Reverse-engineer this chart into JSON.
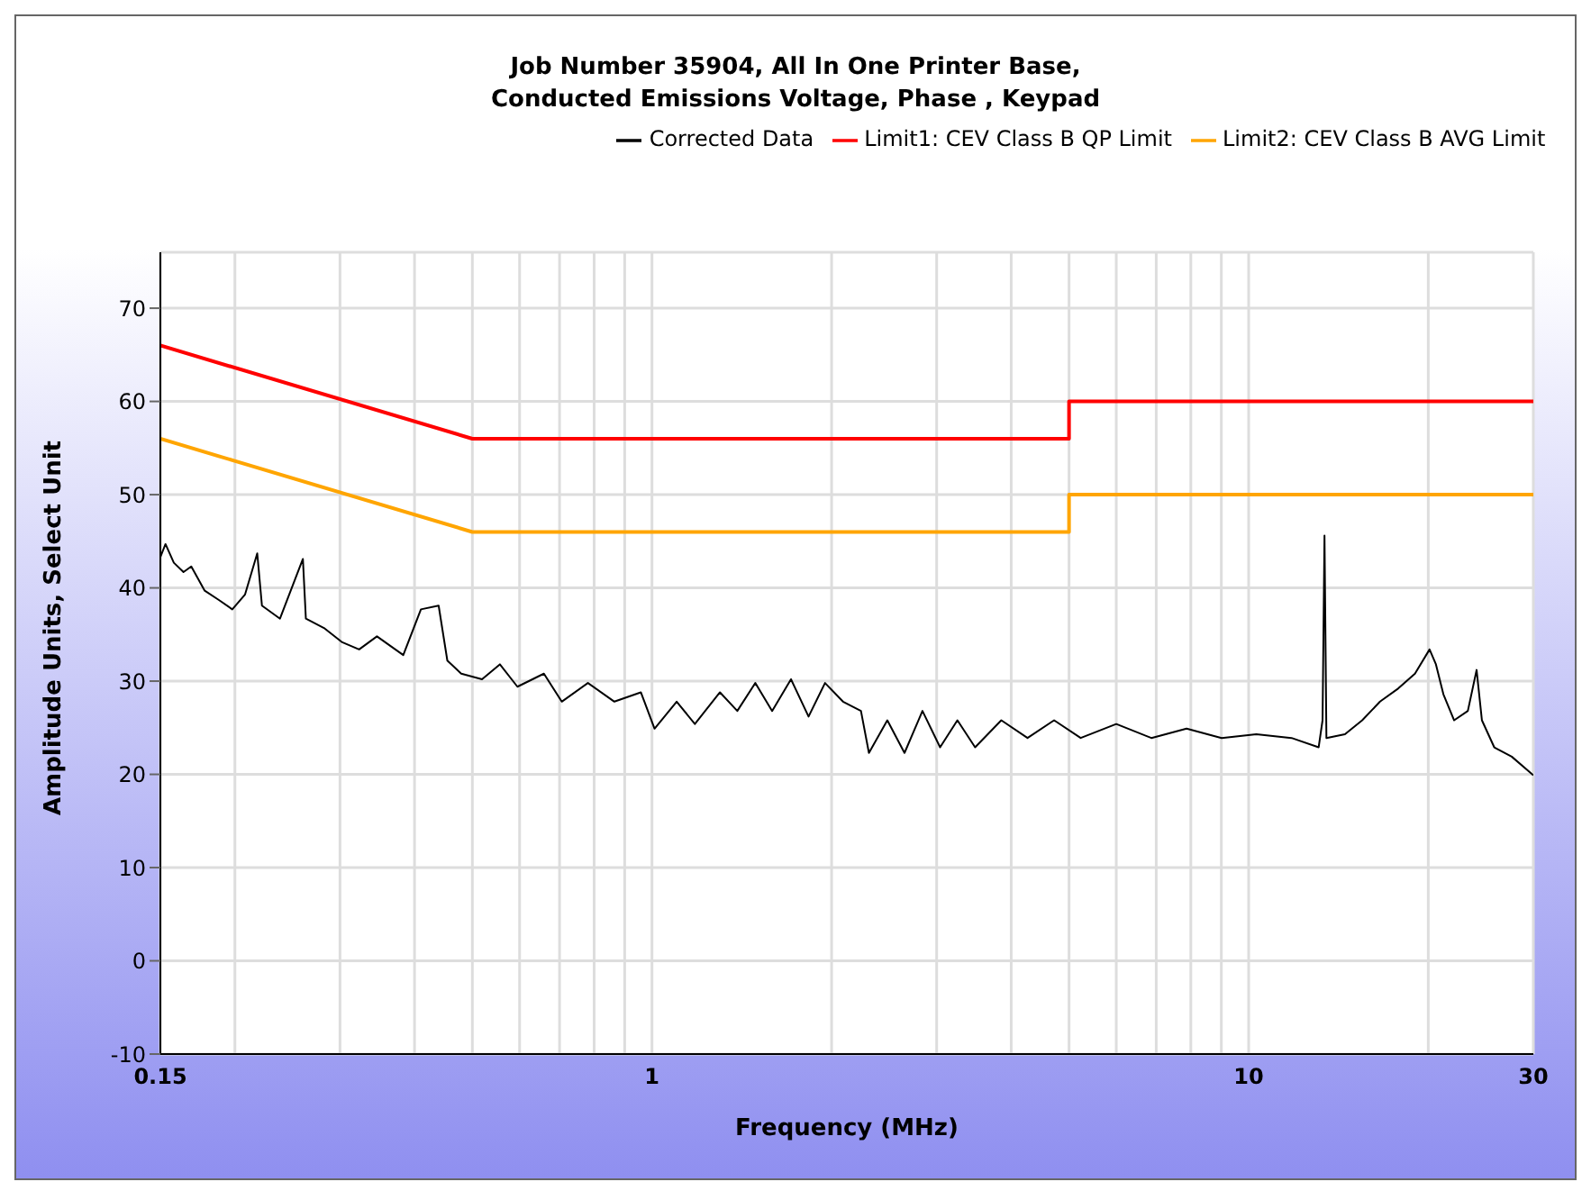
{
  "chart_data": {
    "type": "line",
    "title": "Job Number 35904, All In One Printer Base,\nConducted Emissions Voltage, Phase , Keypad",
    "xlabel": "Frequency (MHz)",
    "ylabel": "Amplitude Units, Select Unit",
    "log": "x",
    "grid": true,
    "legend": "top",
    "marker": "none",
    "line_style": "solid",
    "xlim": [
      0.15,
      30
    ],
    "xticks": [
      0.15,
      {
        "value": 0.2,
        "label": null
      },
      {
        "value": 0.3,
        "label": null
      },
      {
        "value": 0.4,
        "label": null
      },
      {
        "value": 0.5,
        "label": null
      },
      {
        "value": 0.6,
        "label": null
      },
      {
        "value": 0.7,
        "label": null
      },
      {
        "value": 0.8,
        "label": null
      },
      {
        "value": 0.9,
        "label": null
      },
      1,
      {
        "value": 2,
        "label": null
      },
      {
        "value": 3,
        "label": null
      },
      {
        "value": 4,
        "label": null
      },
      {
        "value": 5,
        "label": null
      },
      {
        "value": 6,
        "label": null
      },
      {
        "value": 7,
        "label": null
      },
      {
        "value": 8,
        "label": null
      },
      {
        "value": 9,
        "label": null
      },
      10,
      {
        "value": 20,
        "label": null
      },
      30
    ],
    "ylim": [
      -10,
      76
    ],
    "yticks": [
      -10,
      0,
      10,
      20,
      30,
      40,
      50,
      60,
      70
    ],
    "series": [
      {
        "name": "Corrected Data",
        "color": "#000000",
        "x": [
          0.15,
          0.153,
          0.158,
          0.164,
          0.169,
          0.178,
          0.188,
          0.198,
          0.208,
          0.218,
          0.222,
          0.238,
          0.26,
          0.263,
          0.282,
          0.302,
          0.323,
          0.346,
          0.383,
          0.41,
          0.439,
          0.454,
          0.479,
          0.519,
          0.556,
          0.595,
          0.659,
          0.706,
          0.781,
          0.865,
          0.958,
          1.01,
          1.1,
          1.18,
          1.3,
          1.39,
          1.49,
          1.59,
          1.71,
          1.83,
          1.95,
          2.09,
          2.24,
          2.31,
          2.48,
          2.65,
          2.84,
          3.04,
          3.25,
          3.48,
          3.85,
          4.26,
          4.72,
          5.23,
          6.0,
          6.87,
          7.87,
          9.01,
          10.3,
          11.8,
          13.1,
          13.3,
          13.4,
          13.5,
          14.5,
          15.5,
          16.6,
          17.8,
          19.0,
          20.1,
          20.6,
          21.2,
          22.1,
          23.3,
          24.1,
          24.6,
          25.8,
          27.6,
          30
        ],
        "values": [
          43.3,
          44.7,
          42.7,
          41.7,
          42.3,
          39.7,
          38.7,
          37.7,
          39.3,
          43.7,
          38.1,
          36.7,
          43.1,
          36.7,
          35.7,
          34.2,
          33.4,
          34.8,
          32.8,
          37.7,
          38.1,
          32.2,
          30.8,
          30.2,
          31.8,
          29.4,
          30.8,
          27.8,
          29.8,
          27.8,
          28.8,
          24.9,
          27.8,
          25.4,
          28.8,
          26.8,
          29.8,
          26.8,
          30.2,
          26.2,
          29.8,
          27.8,
          26.8,
          22.3,
          25.8,
          22.3,
          26.8,
          22.9,
          25.8,
          22.9,
          25.8,
          23.9,
          25.8,
          23.9,
          25.4,
          23.9,
          24.9,
          23.9,
          24.3,
          23.9,
          22.9,
          25.8,
          45.6,
          23.9,
          24.3,
          25.8,
          27.8,
          29.2,
          30.8,
          33.4,
          31.8,
          28.6,
          25.8,
          26.8,
          31.2,
          25.8,
          22.9,
          21.9,
          19.9
        ]
      },
      {
        "name": "Limit1: CEV Class B QP Limit",
        "color": "#ff0000",
        "x": [
          0.15,
          0.5,
          5,
          5,
          30
        ],
        "values": [
          66,
          56,
          56,
          60,
          60
        ]
      },
      {
        "name": "Limit2: CEV Class B AVG Limit",
        "color": "#ffa500",
        "x": [
          0.15,
          0.5,
          5,
          5,
          30
        ],
        "values": [
          56,
          46,
          46,
          50,
          50
        ]
      }
    ]
  }
}
